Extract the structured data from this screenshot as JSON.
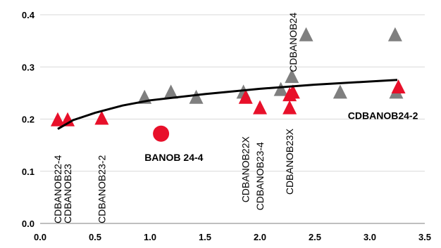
{
  "chart_data": {
    "type": "scatter",
    "xlim": [
      0,
      3.5
    ],
    "ylim": [
      0,
      0.4
    ],
    "x_ticks": [
      "0.0",
      "0.5",
      "1.0",
      "1.5",
      "2.0",
      "2.5",
      "3.0",
      "3.5"
    ],
    "y_ticks": [
      "0.0",
      "0.1",
      "0.2",
      "0.3",
      "0.4"
    ],
    "grid": "horizontal",
    "colors": {
      "gray": "#7f7f7f",
      "red": "#e8102a",
      "trend": "#000000"
    },
    "series": [
      {
        "marker": "triangle",
        "color": "gray",
        "points": [
          {
            "x": 0.95,
            "y": 0.24
          },
          {
            "x": 1.19,
            "y": 0.25
          },
          {
            "x": 1.42,
            "y": 0.24
          },
          {
            "x": 1.85,
            "y": 0.25
          },
          {
            "x": 2.19,
            "y": 0.255
          },
          {
            "x": 2.29,
            "y": 0.28
          },
          {
            "x": 2.42,
            "y": 0.36
          },
          {
            "x": 2.73,
            "y": 0.25
          },
          {
            "x": 3.23,
            "y": 0.36
          },
          {
            "x": 3.24,
            "y": 0.25
          }
        ]
      },
      {
        "marker": "triangle",
        "color": "red",
        "points": [
          {
            "x": 0.16,
            "y": 0.197
          },
          {
            "x": 0.25,
            "y": 0.197
          },
          {
            "x": 0.56,
            "y": 0.2
          },
          {
            "x": 1.87,
            "y": 0.24
          },
          {
            "x": 2.0,
            "y": 0.22
          },
          {
            "x": 2.27,
            "y": 0.22
          },
          {
            "x": 2.27,
            "y": 0.245
          },
          {
            "x": 2.3,
            "y": 0.25
          },
          {
            "x": 3.26,
            "y": 0.26
          }
        ]
      },
      {
        "marker": "circle",
        "color": "red",
        "points": [
          {
            "x": 1.1,
            "y": 0.172
          }
        ]
      }
    ],
    "trendline": {
      "points": [
        {
          "x": 0.16,
          "y": 0.181
        },
        {
          "x": 0.3,
          "y": 0.198
        },
        {
          "x": 0.5,
          "y": 0.212
        },
        {
          "x": 0.75,
          "y": 0.226
        },
        {
          "x": 1.0,
          "y": 0.236
        },
        {
          "x": 1.5,
          "y": 0.248
        },
        {
          "x": 2.0,
          "y": 0.258
        },
        {
          "x": 2.5,
          "y": 0.266
        },
        {
          "x": 3.0,
          "y": 0.272
        },
        {
          "x": 3.25,
          "y": 0.275
        }
      ]
    },
    "annotations": [
      {
        "text": "CDBANOB22-4",
        "x": 0.16,
        "y": 0.0,
        "rotated": true
      },
      {
        "text": "CDBANOB23",
        "x": 0.25,
        "y": 0.0,
        "rotated": true
      },
      {
        "text": "CDBANOB23-2",
        "x": 0.56,
        "y": 0.0,
        "rotated": true
      },
      {
        "text": "CDBANOB22X",
        "x": 1.87,
        "y": 0.04,
        "rotated": true
      },
      {
        "text": "CDBANOB23-4",
        "x": 2.0,
        "y": 0.025,
        "rotated": true
      },
      {
        "text": "CDBANOB23X",
        "x": 2.27,
        "y": 0.055,
        "rotated": true
      },
      {
        "text": "CDBANOB24",
        "x": 2.3,
        "y": 0.29,
        "rotated": true
      },
      {
        "text": "BANOB 24-4",
        "x": 0.95,
        "y": 0.12,
        "rotated": false
      },
      {
        "text": "CDBANOB24-2",
        "x": 2.8,
        "y": 0.2,
        "rotated": false
      }
    ]
  }
}
